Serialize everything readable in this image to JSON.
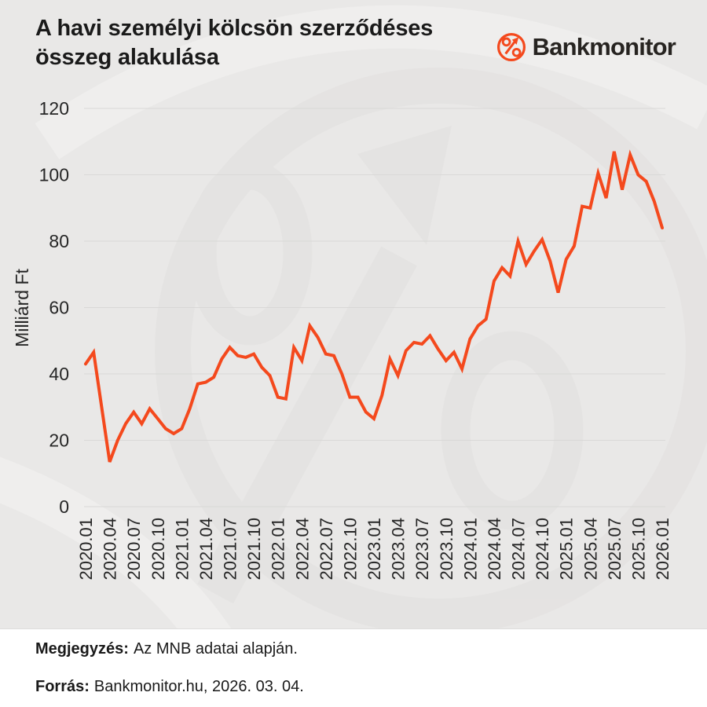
{
  "title": {
    "line1": "A havi személyi kölcsön szerződéses",
    "line2": "összeg alakulása"
  },
  "logo": {
    "text": "Bankmonitor",
    "icon": "percent-arrow-icon",
    "accent_color": "#f4491d",
    "text_color": "#272421"
  },
  "notes": {
    "note_label": "Megjegyzés:",
    "note_text": "Az MNB adatai alapján.",
    "source_label": "Forrás:",
    "source_text": "Bankmonitor.hu, 2026. 03. 04."
  },
  "colors": {
    "background": "#e9e8e7",
    "footer_background": "#ffffff",
    "line": "#f4491d",
    "grid": "#d9d8d7",
    "tick_text": "#262626",
    "watermark_dark": "#e2e0df",
    "watermark_light": "#efeeed"
  },
  "chart_data": {
    "type": "line",
    "title": "A havi személyi kölcsön szerződéses összeg alakulása",
    "ylabel": "Milliárd Ft",
    "xlabel": "",
    "ylim": [
      0,
      120
    ],
    "y_ticks": [
      0,
      20,
      40,
      60,
      80,
      100,
      120
    ],
    "grid": "horizontal-only",
    "legend": "none",
    "x_tick_step": 3,
    "categories": [
      "2020.01",
      "2020.02",
      "2020.03",
      "2020.04",
      "2020.05",
      "2020.06",
      "2020.07",
      "2020.08",
      "2020.09",
      "2020.10",
      "2020.11",
      "2020.12",
      "2021.01",
      "2021.02",
      "2021.03",
      "2021.04",
      "2021.05",
      "2021.06",
      "2021.07",
      "2021.08",
      "2021.09",
      "2021.10",
      "2021.11",
      "2021.12",
      "2022.01",
      "2022.02",
      "2022.03",
      "2022.04",
      "2022.05",
      "2022.06",
      "2022.07",
      "2022.08",
      "2022.09",
      "2022.10",
      "2022.11",
      "2022.12",
      "2023.01",
      "2023.02",
      "2023.03",
      "2023.04",
      "2023.05",
      "2023.06",
      "2023.07",
      "2023.08",
      "2023.09",
      "2023.10",
      "2023.11",
      "2023.12",
      "2024.01",
      "2024.02",
      "2024.03",
      "2024.04",
      "2024.05",
      "2024.06",
      "2024.07",
      "2024.08",
      "2024.09",
      "2024.10",
      "2024.11",
      "2024.12",
      "2025.01",
      "2025.02",
      "2025.03",
      "2025.04",
      "2025.05",
      "2025.06",
      "2025.07",
      "2025.08",
      "2025.09",
      "2025.10",
      "2025.11",
      "2025.12",
      "2026.01"
    ],
    "values": [
      43,
      46.5,
      30,
      13.5,
      20,
      25,
      28.5,
      25,
      29.5,
      26.5,
      23.5,
      22,
      23.5,
      29.5,
      37,
      37.5,
      39,
      44.5,
      48,
      45.5,
      45,
      46,
      42,
      39.5,
      33,
      32.5,
      48,
      44,
      54.5,
      51,
      46,
      45.5,
      40,
      33,
      33,
      28.5,
      26.5,
      33.5,
      44.5,
      39.5,
      47,
      49.5,
      49,
      51.5,
      47.5,
      44,
      46.5,
      41.5,
      50.5,
      54.5,
      56.5,
      68,
      72,
      69.5,
      80,
      73,
      77,
      80.5,
      74,
      64.5,
      74.5,
      78.5,
      90.5,
      90,
      100.5,
      93,
      107,
      95.5,
      106,
      100,
      98,
      92,
      84
    ]
  }
}
